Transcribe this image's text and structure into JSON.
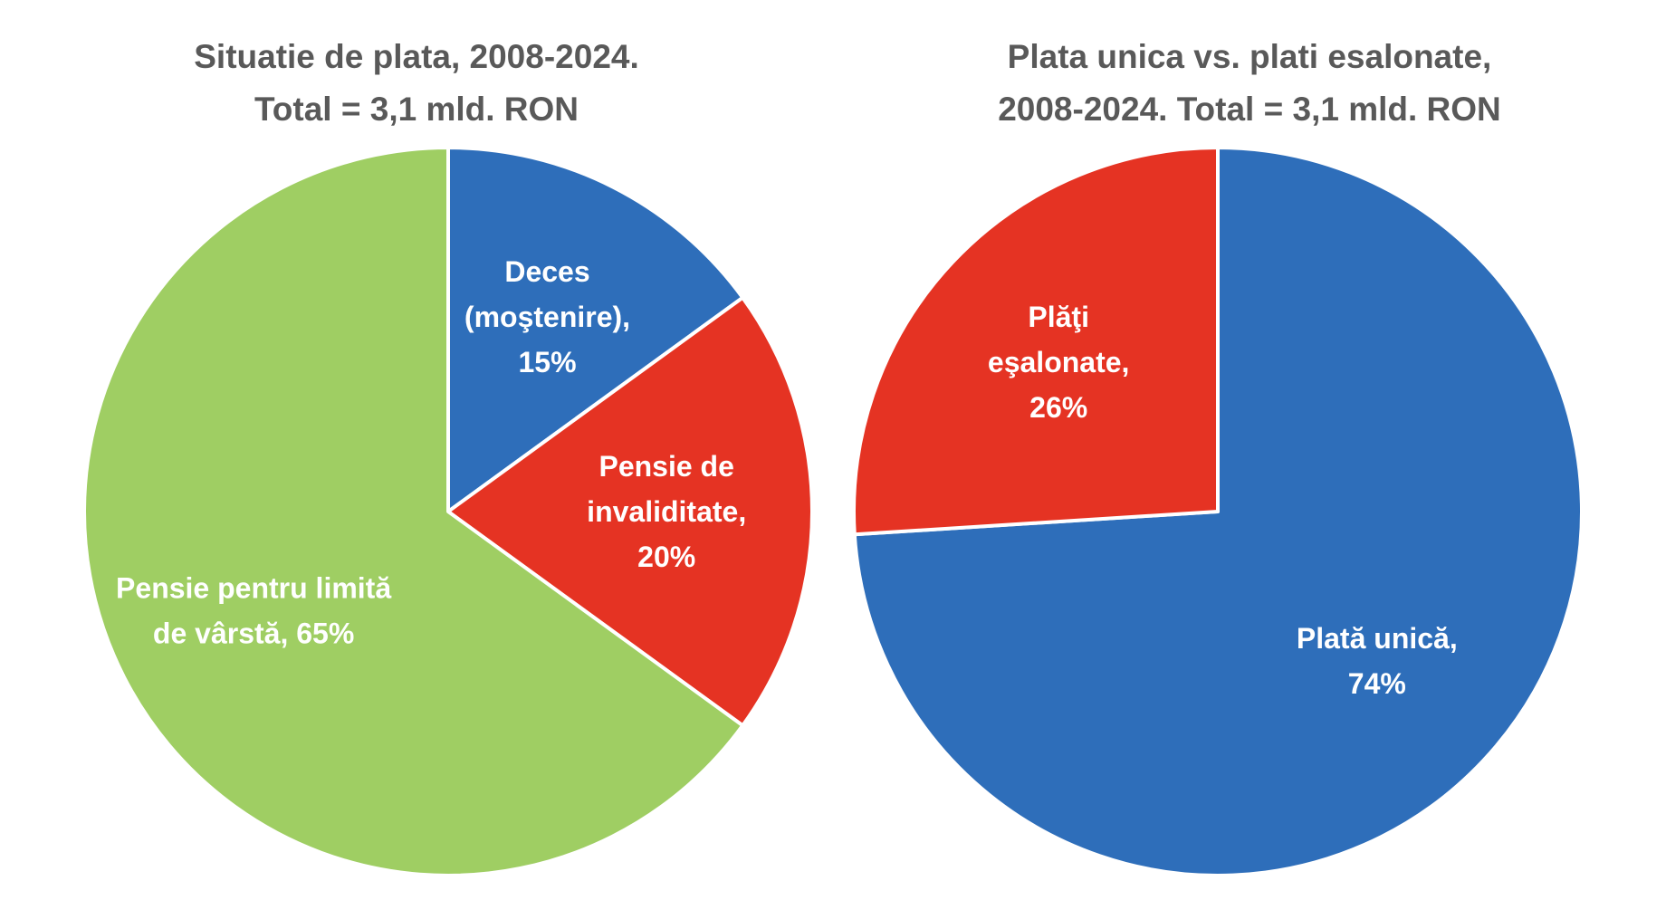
{
  "chart_data": [
    {
      "type": "pie",
      "title_lines": [
        "Situatie de plata, 2008-2024.",
        "Total = 3,1 mld. RON"
      ],
      "start_angle_deg": 0,
      "slices": [
        {
          "label_lines": [
            "Deces",
            "(moştenire),",
            "15%"
          ],
          "value": 15,
          "color": "#2E6EBA"
        },
        {
          "label_lines": [
            "Pensie de",
            "invaliditate,",
            "20%"
          ],
          "value": 20,
          "color": "#E53323"
        },
        {
          "label_lines": [
            "Pensie pentru limită",
            "de vârstă, 65%"
          ],
          "value": 65,
          "color": "#9FCE63"
        }
      ]
    },
    {
      "type": "pie",
      "title_lines": [
        "Plata unica vs. plati esalonate,",
        "2008-2024. Total = 3,1 mld. RON"
      ],
      "start_angle_deg": 0,
      "slices": [
        {
          "label_lines": [
            "Plată unică,",
            "74%"
          ],
          "value": 74,
          "color": "#2E6EBA"
        },
        {
          "label_lines": [
            "Plăţi",
            "eşalonate,",
            "26%"
          ],
          "value": 26,
          "color": "#E53323"
        }
      ]
    }
  ]
}
